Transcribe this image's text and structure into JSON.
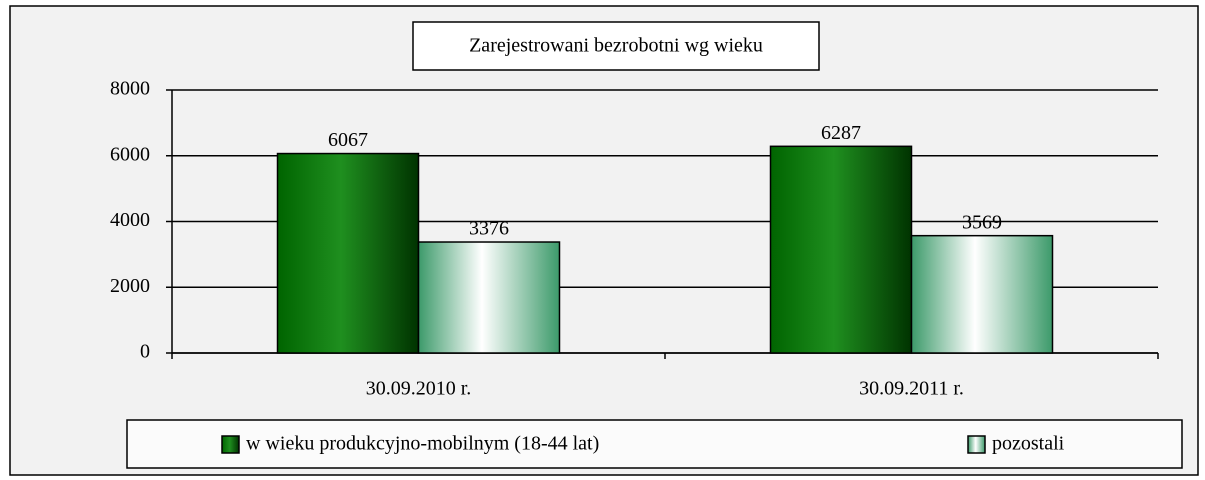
{
  "chart_data": {
    "type": "bar",
    "title": "Zarejestrowani bezrobotni wg wieku",
    "categories": [
      "30.09.2010 r.",
      "30.09.2011 r."
    ],
    "series": [
      {
        "name": "w wieku produkcyjno-mobilnym (18-44 lat)",
        "color": "#006400",
        "values": [
          6067,
          6287
        ]
      },
      {
        "name": "pozostali",
        "color": "#3c9a6a",
        "values": [
          3376,
          3569
        ]
      }
    ],
    "ylim": [
      0,
      8000
    ],
    "yticks": [
      0,
      2000,
      4000,
      6000,
      8000
    ],
    "grid": true,
    "legend": "bottom"
  }
}
